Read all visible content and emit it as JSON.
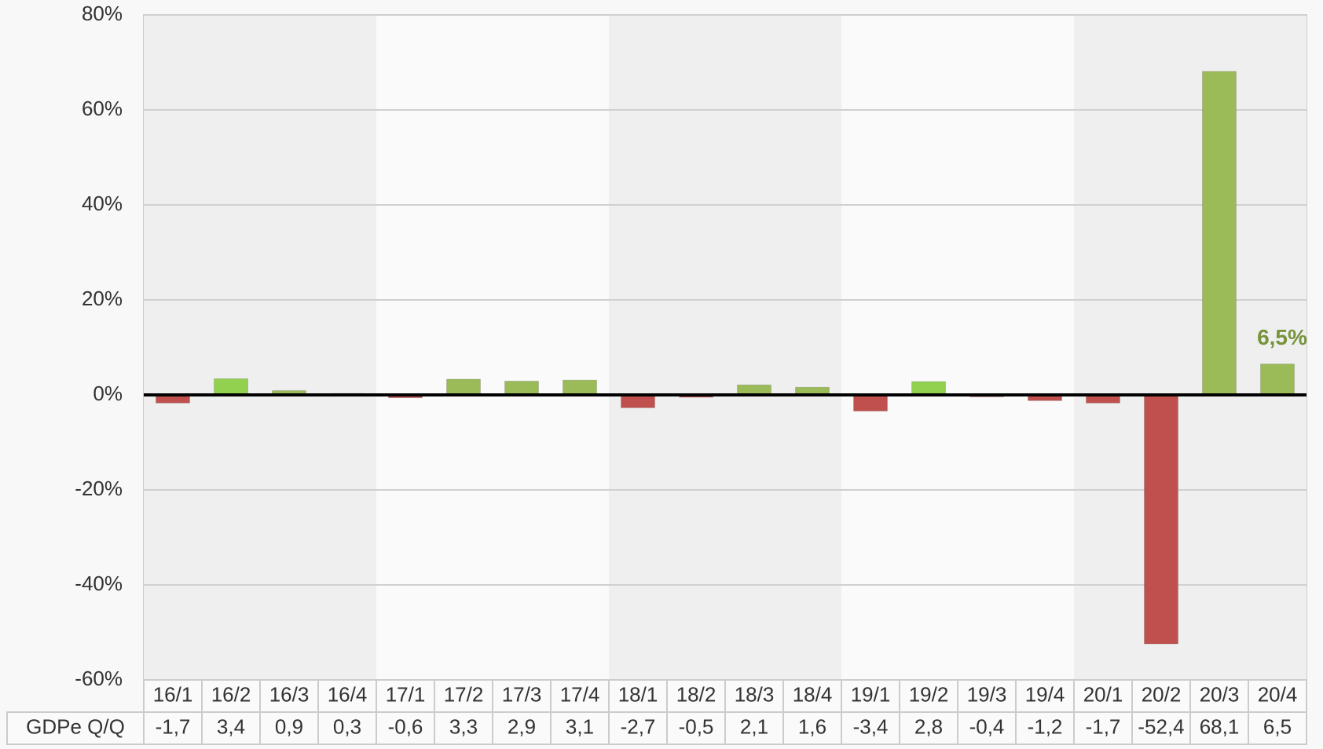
{
  "chart_data": {
    "type": "bar",
    "row_label": "GDPe Q/Q",
    "categories": [
      "16/1",
      "16/2",
      "16/3",
      "16/4",
      "17/1",
      "17/2",
      "17/3",
      "17/4",
      "18/1",
      "18/2",
      "18/3",
      "18/4",
      "19/1",
      "19/2",
      "19/3",
      "19/4",
      "20/1",
      "20/2",
      "20/3",
      "20/4"
    ],
    "values": [
      -1.7,
      3.4,
      0.9,
      0.3,
      -0.6,
      3.3,
      2.9,
      3.1,
      -2.7,
      -0.5,
      2.1,
      1.6,
      -3.4,
      2.8,
      -0.4,
      -1.2,
      -1.7,
      -52.4,
      68.1,
      6.5
    ],
    "value_labels": [
      "-1,7",
      "3,4",
      "0,9",
      "0,3",
      "-0,6",
      "3,3",
      "2,9",
      "3,1",
      "-2,7",
      "-0,5",
      "2,1",
      "1,6",
      "-3,4",
      "2,8",
      "-0,4",
      "-1,2",
      "-1,7",
      "-52,4",
      "68,1",
      "6,5"
    ],
    "colors": [
      "#c0504d",
      "#92d050",
      "#9bbb59",
      "#9bbb59",
      "#c0504d",
      "#9bbb59",
      "#9bbb59",
      "#9bbb59",
      "#c0504d",
      "#c0504d",
      "#9bbb59",
      "#9bbb59",
      "#c0504d",
      "#92d050",
      "#c0504d",
      "#c0504d",
      "#c0504d",
      "#c0504d",
      "#9bbb59",
      "#9bbb59"
    ],
    "annotation": "6,5%",
    "annotation_color": "#77933c",
    "ylim": [
      -60,
      80
    ],
    "yticks": [
      {
        "value": -60,
        "label": "-60%"
      },
      {
        "value": -40,
        "label": "-40%"
      },
      {
        "value": -20,
        "label": "-20%"
      },
      {
        "value": 0,
        "label": "0%"
      },
      {
        "value": 20,
        "label": "20%"
      },
      {
        "value": 40,
        "label": "40%"
      },
      {
        "value": 60,
        "label": "60%"
      },
      {
        "value": 80,
        "label": "80%"
      }
    ],
    "grid": true
  }
}
